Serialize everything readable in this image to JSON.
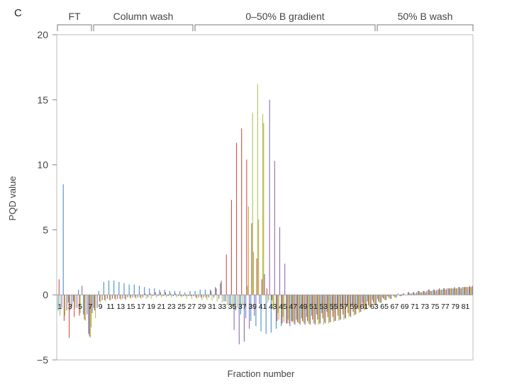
{
  "panel_label": "C",
  "chart_data": {
    "type": "bar",
    "xlabel": "Fraction number",
    "ylabel": "PQD value",
    "ylim": [
      -5,
      20
    ],
    "yticks": [
      -5,
      0,
      5,
      10,
      15,
      20
    ],
    "grid": false,
    "legend": "none",
    "x_tick_labels": [
      "1",
      "3",
      "5",
      "7",
      "9",
      "11",
      "13",
      "15",
      "17",
      "19",
      "21",
      "23",
      "25",
      "27",
      "29",
      "31",
      "33",
      "35",
      "37",
      "39",
      "41",
      "43",
      "45",
      "47",
      "49",
      "51",
      "53",
      "55",
      "57",
      "59",
      "61",
      "63",
      "65",
      "67",
      "69",
      "71",
      "73",
      "75",
      "77",
      "79",
      "81"
    ],
    "regions": [
      {
        "label": "FT",
        "from": 1,
        "to": 8
      },
      {
        "label": "Column wash",
        "from": 9,
        "to": 28
      },
      {
        "label": "0–50% B gradient",
        "from": 29,
        "to": 63
      },
      {
        "label": "50% B wash",
        "from": 64,
        "to": 82
      }
    ],
    "series_colors": [
      "#4a8ec9",
      "#d04f45",
      "#a7c957",
      "#c9a640",
      "#8e6bb0"
    ],
    "fractions": [
      {
        "f": 1,
        "v": [
          -1.2,
          1.2,
          -1.6,
          0.0,
          -1.0
        ]
      },
      {
        "f": 2,
        "v": [
          8.5,
          -2.0,
          -1.6,
          0.0,
          -1.2
        ]
      },
      {
        "f": 3,
        "v": [
          -0.6,
          -3.3,
          -1.2,
          0.0,
          -0.9
        ]
      },
      {
        "f": 4,
        "v": [
          -0.5,
          -1.7,
          -1.0,
          0.0,
          -1.0
        ]
      },
      {
        "f": 5,
        "v": [
          0.4,
          -1.6,
          -1.4,
          0.0,
          0.7
        ]
      },
      {
        "f": 6,
        "v": [
          -1.5,
          -1.9,
          -2.0,
          0.0,
          -1.5
        ]
      },
      {
        "f": 7,
        "v": [
          -3.0,
          -3.2,
          -3.3,
          -2.5,
          -1.4
        ]
      },
      {
        "f": 8,
        "v": [
          -1.0,
          -1.2,
          -1.8,
          0.0,
          -1.0
        ]
      },
      {
        "f": 9,
        "v": [
          0.3,
          -0.5,
          -0.6,
          0.0,
          -0.4
        ]
      },
      {
        "f": 10,
        "v": [
          1.0,
          -0.4,
          -0.5,
          0.0,
          -0.3
        ]
      },
      {
        "f": 11,
        "v": [
          1.1,
          -0.4,
          -0.4,
          0.0,
          -0.3
        ]
      },
      {
        "f": 12,
        "v": [
          1.1,
          -0.3,
          -0.4,
          0.0,
          -0.3
        ]
      },
      {
        "f": 13,
        "v": [
          1.0,
          -0.3,
          -0.4,
          0.0,
          -0.3
        ]
      },
      {
        "f": 14,
        "v": [
          0.9,
          -0.3,
          -0.4,
          0.0,
          -0.2
        ]
      },
      {
        "f": 15,
        "v": [
          0.8,
          -0.2,
          -0.3,
          0.0,
          -0.2
        ]
      },
      {
        "f": 16,
        "v": [
          0.8,
          -0.2,
          -0.3,
          0.0,
          -0.2
        ]
      },
      {
        "f": 17,
        "v": [
          0.7,
          -0.2,
          -0.3,
          0.0,
          -0.2
        ]
      },
      {
        "f": 18,
        "v": [
          0.6,
          0.1,
          -0.3,
          0.0,
          -0.2
        ]
      },
      {
        "f": 19,
        "v": [
          0.5,
          0.1,
          -0.3,
          0.0,
          -0.1
        ]
      },
      {
        "f": 20,
        "v": [
          0.5,
          0.2,
          -0.2,
          0.0,
          -0.1
        ]
      },
      {
        "f": 21,
        "v": [
          0.4,
          0.2,
          -0.2,
          0.0,
          -0.1
        ]
      },
      {
        "f": 22,
        "v": [
          0.4,
          0.2,
          -0.2,
          0.0,
          -0.1
        ]
      },
      {
        "f": 23,
        "v": [
          0.3,
          0.1,
          -0.2,
          0.0,
          -0.1
        ]
      },
      {
        "f": 24,
        "v": [
          0.3,
          0.1,
          -0.2,
          0.0,
          -0.1
        ]
      },
      {
        "f": 25,
        "v": [
          0.3,
          -0.1,
          -0.2,
          0.0,
          -0.1
        ]
      },
      {
        "f": 26,
        "v": [
          0.2,
          -0.1,
          -0.3,
          0.0,
          -0.1
        ]
      },
      {
        "f": 27,
        "v": [
          0.3,
          -0.1,
          -0.3,
          0.0,
          -0.1
        ]
      },
      {
        "f": 28,
        "v": [
          0.3,
          -0.2,
          -0.3,
          0.0,
          -0.2
        ]
      },
      {
        "f": 29,
        "v": [
          0.4,
          -0.2,
          -0.4,
          0.0,
          -0.2
        ]
      },
      {
        "f": 30,
        "v": [
          0.4,
          -0.2,
          -0.4,
          0.0,
          -0.2
        ]
      },
      {
        "f": 31,
        "v": [
          0.4,
          0.3,
          -0.4,
          0.0,
          -0.2
        ]
      },
      {
        "f": 32,
        "v": [
          0.6,
          0.5,
          -0.5,
          0.0,
          -0.3
        ]
      },
      {
        "f": 33,
        "v": [
          0.9,
          1.1,
          -0.6,
          0.0,
          -0.5
        ]
      },
      {
        "f": 34,
        "v": [
          -0.5,
          3.1,
          -0.8,
          0.0,
          -0.8
        ]
      },
      {
        "f": 35,
        "v": [
          -0.8,
          7.3,
          -1.0,
          0.0,
          -2.7
        ]
      },
      {
        "f": 36,
        "v": [
          -1.2,
          11.7,
          -1.0,
          0.0,
          -3.8
        ]
      },
      {
        "f": 37,
        "v": [
          -1.5,
          12.8,
          -0.8,
          0.0,
          -3.6
        ]
      },
      {
        "f": 38,
        "v": [
          -1.8,
          10.4,
          0.7,
          6.8,
          -2.6
        ]
      },
      {
        "f": 39,
        "v": [
          -2.0,
          5.5,
          14.0,
          3.3,
          -1.6
        ]
      },
      {
        "f": 40,
        "v": [
          -2.4,
          2.8,
          16.2,
          5.8,
          -0.7
        ]
      },
      {
        "f": 41,
        "v": [
          -2.8,
          1.2,
          13.9,
          13.2,
          1.6
        ]
      },
      {
        "f": 42,
        "v": [
          -3.0,
          0.5,
          -0.6,
          -0.4,
          15.0
        ]
      },
      {
        "f": 43,
        "v": [
          -2.9,
          -0.4,
          -1.0,
          -1.2,
          10.3
        ]
      },
      {
        "f": 44,
        "v": [
          -2.6,
          -2.0,
          -1.4,
          -1.9,
          5.2
        ]
      },
      {
        "f": 45,
        "v": [
          -2.4,
          -2.2,
          -1.7,
          -2.1,
          2.4
        ]
      },
      {
        "f": 46,
        "v": [
          -2.2,
          -2.2,
          -1.9,
          -2.2,
          -2.4
        ]
      },
      {
        "f": 47,
        "v": [
          -2.0,
          -2.1,
          -2.0,
          -2.2,
          -2.3
        ]
      },
      {
        "f": 48,
        "v": [
          -1.9,
          -2.1,
          -2.1,
          -2.2,
          -2.3
        ]
      },
      {
        "f": 49,
        "v": [
          -1.8,
          -2.0,
          -2.1,
          -2.2,
          -2.3
        ]
      },
      {
        "f": 50,
        "v": [
          -1.7,
          -2.0,
          -2.2,
          -2.2,
          -2.3
        ]
      },
      {
        "f": 51,
        "v": [
          -1.6,
          -1.9,
          -2.2,
          -2.2,
          -2.3
        ]
      },
      {
        "f": 52,
        "v": [
          -1.5,
          -1.9,
          -2.3,
          -2.2,
          -2.2
        ]
      },
      {
        "f": 53,
        "v": [
          -1.4,
          -1.8,
          -2.3,
          -2.1,
          -2.2
        ]
      },
      {
        "f": 54,
        "v": [
          -1.3,
          -1.7,
          -2.2,
          -2.1,
          -2.1
        ]
      },
      {
        "f": 55,
        "v": [
          -1.2,
          -1.7,
          -2.1,
          -2.0,
          -2.0
        ]
      },
      {
        "f": 56,
        "v": [
          -1.1,
          -1.6,
          -2.0,
          -1.9,
          -1.9
        ]
      },
      {
        "f": 57,
        "v": [
          -1.0,
          -1.5,
          -1.9,
          -1.8,
          -1.8
        ]
      },
      {
        "f": 58,
        "v": [
          -0.9,
          -1.4,
          -1.7,
          -1.6,
          -1.7
        ]
      },
      {
        "f": 59,
        "v": [
          -0.8,
          -1.3,
          -1.6,
          -1.5,
          -1.5
        ]
      },
      {
        "f": 60,
        "v": [
          -0.7,
          -1.1,
          -1.4,
          -1.3,
          -1.3
        ]
      },
      {
        "f": 61,
        "v": [
          -0.6,
          -1.0,
          -1.2,
          -1.1,
          -1.1
        ]
      },
      {
        "f": 62,
        "v": [
          -0.5,
          -0.8,
          -1.0,
          -0.9,
          -0.9
        ]
      },
      {
        "f": 63,
        "v": [
          -0.4,
          -0.6,
          -0.8,
          -0.8,
          -0.8
        ]
      },
      {
        "f": 64,
        "v": [
          -0.3,
          -0.5,
          -0.6,
          -0.6,
          -0.6
        ]
      },
      {
        "f": 65,
        "v": [
          -0.2,
          -0.3,
          -0.4,
          -0.4,
          -0.4
        ]
      },
      {
        "f": 66,
        "v": [
          -0.1,
          -0.2,
          -0.3,
          -0.3,
          -0.3
        ]
      },
      {
        "f": 67,
        "v": [
          0.0,
          -0.1,
          -0.2,
          -0.2,
          -0.2
        ]
      },
      {
        "f": 68,
        "v": [
          0.1,
          0.0,
          -0.1,
          -0.1,
          -0.1
        ]
      },
      {
        "f": 69,
        "v": [
          0.1,
          0.1,
          0.0,
          0.0,
          0.0
        ]
      },
      {
        "f": 70,
        "v": [
          0.2,
          0.2,
          0.1,
          0.1,
          0.1
        ]
      },
      {
        "f": 71,
        "v": [
          0.2,
          0.2,
          0.1,
          0.1,
          0.2
        ]
      },
      {
        "f": 72,
        "v": [
          0.3,
          0.3,
          0.2,
          0.2,
          0.2
        ]
      },
      {
        "f": 73,
        "v": [
          0.3,
          0.3,
          0.2,
          0.2,
          0.3
        ]
      },
      {
        "f": 74,
        "v": [
          0.4,
          0.4,
          0.3,
          0.3,
          0.3
        ]
      },
      {
        "f": 75,
        "v": [
          0.4,
          0.4,
          0.3,
          0.3,
          0.4
        ]
      },
      {
        "f": 76,
        "v": [
          0.4,
          0.5,
          0.4,
          0.4,
          0.4
        ]
      },
      {
        "f": 77,
        "v": [
          0.5,
          0.5,
          0.4,
          0.4,
          0.5
        ]
      },
      {
        "f": 78,
        "v": [
          0.5,
          0.5,
          0.5,
          0.5,
          0.5
        ]
      },
      {
        "f": 79,
        "v": [
          0.5,
          0.6,
          0.5,
          0.5,
          0.5
        ]
      },
      {
        "f": 80,
        "v": [
          0.6,
          0.6,
          0.5,
          0.5,
          0.6
        ]
      },
      {
        "f": 81,
        "v": [
          0.6,
          0.6,
          0.6,
          0.6,
          0.6
        ]
      },
      {
        "f": 82,
        "v": [
          0.6,
          0.7,
          0.6,
          0.6,
          0.7
        ]
      }
    ]
  }
}
